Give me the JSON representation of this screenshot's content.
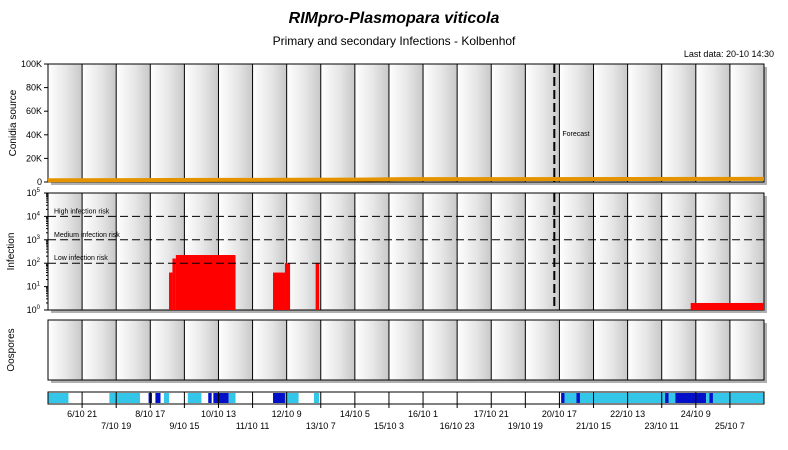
{
  "header": {
    "title": "RIMpro-Plasmopara viticola",
    "subtitle": "Primary and secondary Infections - Kolbenhof",
    "last_data": "Last data: 20-10 14:30"
  },
  "colors": {
    "panel_fill": "#d8d8d8",
    "orange_line": "#e59400",
    "infection_red": "#ff0000",
    "weather_light": "#33c6e8",
    "weather_dark": "#0010c8",
    "weather_base": "#1e96e6"
  },
  "chart_data": [
    {
      "type": "area",
      "name": "conidia-source",
      "ylabel": "Conidia source",
      "ylim": [
        0,
        100000
      ],
      "yticks": [
        "0",
        "20K",
        "40K",
        "60K",
        "80K",
        "100K"
      ],
      "annotation": "Forecast",
      "series": [
        {
          "values": [
            {
              "x": 0,
              "y": 1500
            },
            {
              "x": 5,
              "y": 1800
            },
            {
              "x": 9,
              "y": 2000
            },
            {
              "x": 10.5,
              "y": 2400
            },
            {
              "x": 21,
              "y": 2600
            }
          ]
        }
      ]
    },
    {
      "type": "area",
      "name": "infection",
      "ylabel": "Infection",
      "scale": "log",
      "ylim_exp": [
        0,
        5
      ],
      "thresholds": [
        {
          "label": "High infection risk",
          "exp": 4
        },
        {
          "label": "Medium infection risk",
          "exp": 3
        },
        {
          "label": "Low infection risk",
          "exp": 2
        }
      ],
      "series": [
        {
          "blocks": [
            {
              "x0": 3.55,
              "x1": 3.65,
              "exp": 1.6
            },
            {
              "x0": 3.65,
              "x1": 3.75,
              "exp": 2.2
            },
            {
              "x0": 3.75,
              "x1": 5.5,
              "exp": 2.35
            },
            {
              "x0": 6.6,
              "x1": 6.95,
              "exp": 1.6
            },
            {
              "x0": 6.95,
              "x1": 7.1,
              "exp": 2.0
            },
            {
              "x0": 7.85,
              "x1": 7.95,
              "exp": 2.0
            },
            {
              "x0": 18.85,
              "x1": 21,
              "exp": 0.3
            }
          ]
        }
      ]
    },
    {
      "type": "area",
      "name": "oospores",
      "ylabel": "Oospores",
      "series": []
    }
  ],
  "x_axis": {
    "cols": 21,
    "top_row": [
      {
        "c": 1,
        "label": "6/10 21"
      },
      {
        "c": 3,
        "label": "8/10 17"
      },
      {
        "c": 5,
        "label": "10/10 13"
      },
      {
        "c": 7,
        "label": "12/10 9"
      },
      {
        "c": 9,
        "label": "14/10 5"
      },
      {
        "c": 11,
        "label": "16/10 1"
      },
      {
        "c": 13,
        "label": "17/10 21"
      },
      {
        "c": 15,
        "label": "20/10 17"
      },
      {
        "c": 17,
        "label": "22/10 13"
      },
      {
        "c": 19,
        "label": "24/10 9"
      }
    ],
    "bottom_row": [
      {
        "c": 2,
        "label": "7/10 19"
      },
      {
        "c": 4,
        "label": "9/10 15"
      },
      {
        "c": 6,
        "label": "11/10 11"
      },
      {
        "c": 8,
        "label": "13/10 7"
      },
      {
        "c": 10,
        "label": "15/10 3"
      },
      {
        "c": 12,
        "label": "16/10 23"
      },
      {
        "c": 14,
        "label": "19/10 19"
      },
      {
        "c": 16,
        "label": "21/10 15"
      },
      {
        "c": 18,
        "label": "23/10 11"
      },
      {
        "c": 20,
        "label": "25/10 7"
      }
    ]
  },
  "weather_strip": [
    {
      "x0": 0,
      "x1": 0.6,
      "c": "light"
    },
    {
      "x0": 1.8,
      "x1": 2.7,
      "c": "light"
    },
    {
      "x0": 2.95,
      "x1": 3.05,
      "c": "dark"
    },
    {
      "x0": 3.15,
      "x1": 3.3,
      "c": "dark"
    },
    {
      "x0": 3.4,
      "x1": 3.55,
      "c": "light"
    },
    {
      "x0": 4.1,
      "x1": 4.5,
      "c": "light"
    },
    {
      "x0": 4.7,
      "x1": 4.8,
      "c": "dark"
    },
    {
      "x0": 4.85,
      "x1": 5.3,
      "c": "dark"
    },
    {
      "x0": 5.3,
      "x1": 5.5,
      "c": "light"
    },
    {
      "x0": 6.6,
      "x1": 6.95,
      "c": "dark"
    },
    {
      "x0": 6.95,
      "x1": 7.15,
      "c": "light"
    },
    {
      "x0": 7.1,
      "x1": 7.35,
      "c": "light"
    },
    {
      "x0": 7.8,
      "x1": 7.95,
      "c": "light"
    },
    {
      "x0": 15.05,
      "x1": 15.15,
      "c": "dark"
    },
    {
      "x0": 15.15,
      "x1": 18.4,
      "c": "light"
    },
    {
      "x0": 18.4,
      "x1": 19.3,
      "c": "dark"
    },
    {
      "x0": 19.3,
      "x1": 21,
      "c": "light"
    },
    {
      "x0": 15.5,
      "x1": 15.6,
      "c": "dark"
    },
    {
      "x0": 18.1,
      "x1": 18.2,
      "c": "dark"
    },
    {
      "x0": 19.4,
      "x1": 19.5,
      "c": "dark"
    }
  ],
  "forecast_col": 14.85
}
